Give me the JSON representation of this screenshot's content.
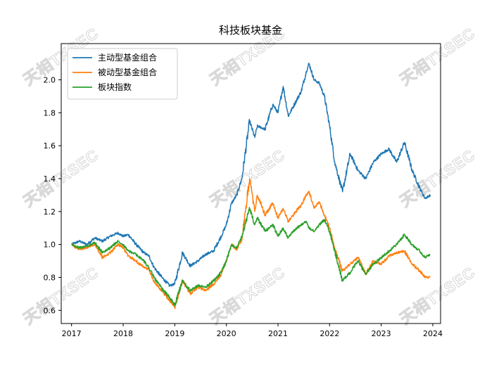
{
  "watermark": "天相TXSEC",
  "chart_data": {
    "type": "line",
    "title": "科技板块基金",
    "xlabel": "",
    "ylabel": "",
    "xlim": [
      2016.8,
      2024.15
    ],
    "ylim": [
      0.52,
      2.22
    ],
    "x_ticks": [
      2017,
      2018,
      2019,
      2020,
      2021,
      2022,
      2023,
      2024
    ],
    "x_tick_labels": [
      "2017",
      "2018",
      "2019",
      "2020",
      "2021",
      "2022",
      "2023",
      "2024"
    ],
    "y_ticks": [
      0.6,
      0.8,
      1.0,
      1.2,
      1.4,
      1.6,
      1.8,
      2.0
    ],
    "y_tick_labels": [
      "0.6",
      "0.8",
      "1.0",
      "1.2",
      "1.4",
      "1.6",
      "1.8",
      "2.0"
    ],
    "grid": false,
    "legend_position": "top-left",
    "x": [
      2017.0,
      2017.15,
      2017.3,
      2017.45,
      2017.6,
      2017.75,
      2017.9,
      2018.0,
      2018.1,
      2018.25,
      2018.4,
      2018.5,
      2018.6,
      2018.75,
      2018.9,
      2019.0,
      2019.15,
      2019.3,
      2019.45,
      2019.6,
      2019.75,
      2019.9,
      2020.0,
      2020.1,
      2020.2,
      2020.3,
      2020.45,
      2020.55,
      2020.6,
      2020.75,
      2020.9,
      2021.0,
      2021.1,
      2021.2,
      2021.3,
      2021.45,
      2021.55,
      2021.6,
      2021.7,
      2021.8,
      2021.9,
      2022.0,
      2022.1,
      2022.25,
      2022.4,
      2022.55,
      2022.7,
      2022.85,
      2023.0,
      2023.15,
      2023.3,
      2023.45,
      2023.6,
      2023.75,
      2023.85,
      2023.95
    ],
    "series": [
      {
        "name": "主动型基金组合",
        "color": "#1f77b4",
        "values": [
          1.0,
          1.02,
          1.0,
          1.04,
          1.02,
          1.05,
          1.07,
          1.05,
          1.06,
          1.0,
          0.95,
          0.93,
          0.86,
          0.8,
          0.75,
          0.76,
          0.95,
          0.87,
          0.9,
          0.94,
          0.96,
          1.05,
          1.12,
          1.25,
          1.3,
          1.4,
          1.75,
          1.65,
          1.72,
          1.7,
          1.85,
          1.8,
          1.96,
          1.78,
          1.84,
          1.93,
          2.05,
          2.1,
          2.0,
          1.98,
          1.9,
          1.72,
          1.5,
          1.32,
          1.55,
          1.45,
          1.4,
          1.5,
          1.55,
          1.58,
          1.5,
          1.62,
          1.45,
          1.34,
          1.28,
          1.3
        ]
      },
      {
        "name": "被动型基金组合",
        "color": "#ff7f0e",
        "values": [
          1.0,
          0.97,
          0.98,
          1.0,
          0.92,
          0.95,
          1.0,
          0.98,
          0.93,
          0.9,
          0.86,
          0.85,
          0.77,
          0.72,
          0.66,
          0.62,
          0.78,
          0.7,
          0.74,
          0.72,
          0.76,
          0.82,
          0.9,
          1.0,
          0.97,
          1.03,
          1.4,
          1.2,
          1.3,
          1.18,
          1.25,
          1.16,
          1.22,
          1.14,
          1.18,
          1.24,
          1.3,
          1.32,
          1.22,
          1.26,
          1.18,
          1.1,
          0.98,
          0.84,
          0.88,
          0.92,
          0.82,
          0.9,
          0.88,
          0.93,
          0.95,
          0.96,
          0.88,
          0.84,
          0.8,
          0.8
        ]
      },
      {
        "name": "板块指数",
        "color": "#2ca02c",
        "values": [
          1.0,
          0.98,
          0.99,
          1.01,
          0.95,
          0.98,
          1.02,
          1.0,
          0.96,
          0.94,
          0.9,
          0.86,
          0.8,
          0.73,
          0.68,
          0.63,
          0.78,
          0.72,
          0.75,
          0.74,
          0.78,
          0.83,
          0.9,
          1.0,
          0.98,
          1.05,
          1.22,
          1.12,
          1.16,
          1.08,
          1.12,
          1.05,
          1.1,
          1.04,
          1.08,
          1.12,
          1.14,
          1.1,
          1.08,
          1.12,
          1.15,
          1.08,
          0.96,
          0.78,
          0.83,
          0.9,
          0.82,
          0.88,
          0.92,
          0.96,
          1.0,
          1.06,
          1.0,
          0.96,
          0.92,
          0.94
        ]
      }
    ]
  }
}
